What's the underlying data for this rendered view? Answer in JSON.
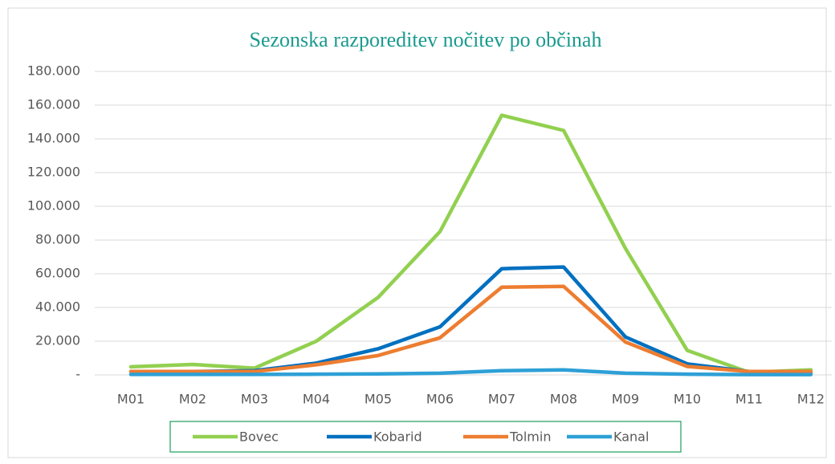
{
  "chart_data": {
    "type": "line",
    "title": "Sezonska razporeditev nočitev po občinah",
    "categories": [
      "M01",
      "M02",
      "M03",
      "M04",
      "M05",
      "M06",
      "M07",
      "M08",
      "M09",
      "M10",
      "M11",
      "M12"
    ],
    "series": [
      {
        "name": "Bovec",
        "color": "#92d050",
        "values": [
          4800,
          6200,
          4000,
          20000,
          46000,
          85000,
          154000,
          145000,
          75000,
          14500,
          1500,
          3000
        ]
      },
      {
        "name": "Kobarid",
        "color": "#0070c0",
        "values": [
          2000,
          2000,
          2500,
          7000,
          15500,
          28500,
          63000,
          64000,
          22500,
          6500,
          2000,
          1500
        ]
      },
      {
        "name": "Tolmin",
        "color": "#ed7d31",
        "values": [
          2000,
          2000,
          2000,
          6000,
          11500,
          22000,
          52000,
          52500,
          19500,
          5000,
          2000,
          2000
        ]
      },
      {
        "name": "Kanal",
        "color": "#2ea0d6",
        "values": [
          300,
          300,
          300,
          400,
          600,
          1000,
          2500,
          3000,
          1000,
          400,
          200,
          200
        ]
      }
    ],
    "ylim": [
      0,
      180000
    ],
    "yticks": [
      {
        "value": 0,
        "label": "-"
      },
      {
        "value": 20000,
        "label": "20.000"
      },
      {
        "value": 40000,
        "label": "40.000"
      },
      {
        "value": 60000,
        "label": "60.000"
      },
      {
        "value": 80000,
        "label": "80.000"
      },
      {
        "value": 100000,
        "label": "100.000"
      },
      {
        "value": 120000,
        "label": "120.000"
      },
      {
        "value": 140000,
        "label": "140.000"
      },
      {
        "value": 160000,
        "label": "160.000"
      },
      {
        "value": 180000,
        "label": "180.000"
      }
    ],
    "grid": true,
    "legend": "bottom"
  }
}
